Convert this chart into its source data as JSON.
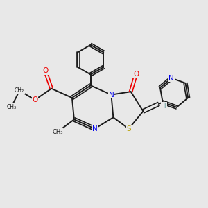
{
  "bg_color": "#e8e8e8",
  "bond_color": "#1a1a1a",
  "atom_colors": {
    "N": "#0000ee",
    "O": "#ee0000",
    "S": "#b8a000",
    "H": "#70a0a0",
    "C": "#1a1a1a"
  },
  "figsize": [
    3.0,
    3.0
  ],
  "dpi": 100,
  "xlim": [
    0,
    10
  ],
  "ylim": [
    0,
    10
  ]
}
